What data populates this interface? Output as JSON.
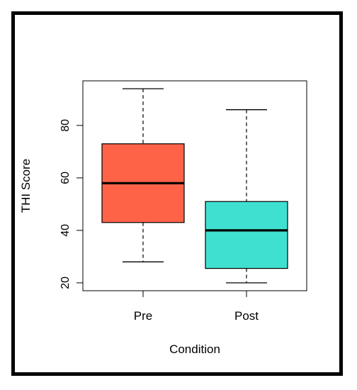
{
  "chart_data": {
    "type": "boxplot",
    "title": "",
    "xlabel": "Condition",
    "ylabel": "THI Score",
    "ylim": [
      17,
      97
    ],
    "yticks": [
      20,
      40,
      60,
      80
    ],
    "grid": false,
    "legend": "none",
    "categories": [
      "Pre",
      "Post"
    ],
    "boxes": [
      {
        "category": "Pre",
        "min": 28,
        "q1": 43,
        "median": 58,
        "q3": 73,
        "max": 94,
        "color": "#FF6347"
      },
      {
        "category": "Post",
        "min": 20,
        "q1": 25.5,
        "median": 40,
        "q3": 51,
        "max": 86,
        "color": "#40E0D0"
      }
    ]
  }
}
